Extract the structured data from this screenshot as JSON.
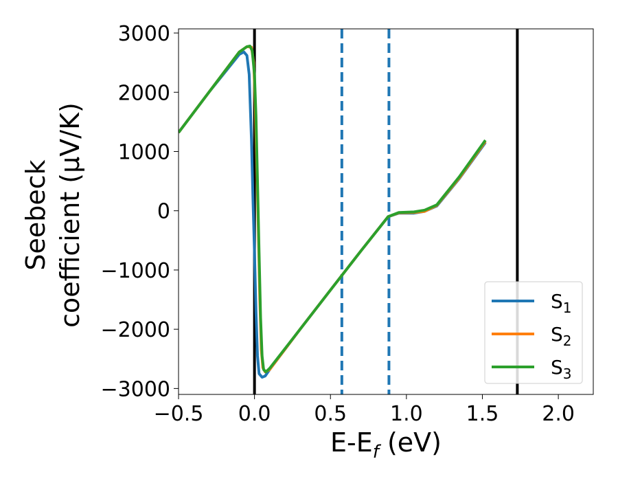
{
  "chart_data": {
    "type": "line",
    "xlabel_main": "E-E",
    "xlabel_sub": "f",
    "xlabel_unit": " (eV)",
    "ylabel_line1": "Seebeck",
    "ylabel_line2": "coefficient  (μV/K)",
    "xlim": [
      -0.5,
      2.23
    ],
    "ylim": [
      -3100,
      3070
    ],
    "x_ticks": [
      {
        "value": -0.5,
        "label": "−0.5"
      },
      {
        "value": 0.0,
        "label": "0.0"
      },
      {
        "value": 0.5,
        "label": "0.5"
      },
      {
        "value": 1.0,
        "label": "1.0"
      },
      {
        "value": 1.5,
        "label": "1.5"
      },
      {
        "value": 2.0,
        "label": "2.0"
      }
    ],
    "y_ticks": [
      {
        "value": 3000,
        "label": "3000"
      },
      {
        "value": 2000,
        "label": "2000"
      },
      {
        "value": 1000,
        "label": "1000"
      },
      {
        "value": 0,
        "label": "0"
      },
      {
        "value": -1000,
        "label": "−1000"
      },
      {
        "value": -2000,
        "label": "−2000"
      },
      {
        "value": -3000,
        "label": "−3000"
      }
    ],
    "vertical_lines": [
      {
        "x": 0.0,
        "style": "solid",
        "color": "#000000"
      },
      {
        "x": 1.73,
        "style": "solid",
        "color": "#000000"
      },
      {
        "x": 0.575,
        "style": "dashed",
        "color": "#1f77b4"
      },
      {
        "x": 0.885,
        "style": "dashed",
        "color": "#1f77b4"
      }
    ],
    "legend_position": "bottom-right",
    "series": [
      {
        "name": "S",
        "sub": "1",
        "color": "#1f77b4",
        "points": [
          [
            -0.5,
            1320
          ],
          [
            -0.3,
            2000
          ],
          [
            -0.1,
            2640
          ],
          [
            -0.07,
            2680
          ],
          [
            -0.05,
            2620
          ],
          [
            -0.035,
            2300
          ],
          [
            -0.02,
            1200
          ],
          [
            -0.01,
            200
          ],
          [
            0.0,
            -700
          ],
          [
            0.01,
            -1700
          ],
          [
            0.02,
            -2450
          ],
          [
            0.03,
            -2750
          ],
          [
            0.05,
            -2810
          ],
          [
            0.07,
            -2790
          ],
          [
            0.1,
            -2680
          ],
          [
            0.3,
            -2000
          ],
          [
            0.5,
            -1340
          ],
          [
            0.7,
            -680
          ],
          [
            0.88,
            -100
          ],
          [
            0.95,
            -40
          ],
          [
            1.05,
            -40
          ],
          [
            1.12,
            -10
          ],
          [
            1.2,
            80
          ],
          [
            1.35,
            550
          ],
          [
            1.52,
            1150
          ]
        ]
      },
      {
        "name": "S",
        "sub": "2",
        "color": "#ff7f0e",
        "points": [
          [
            -0.5,
            1320
          ],
          [
            -0.3,
            2000
          ],
          [
            -0.1,
            2680
          ],
          [
            -0.05,
            2770
          ],
          [
            -0.02,
            2760
          ],
          [
            -0.005,
            2500
          ],
          [
            0.005,
            1800
          ],
          [
            0.015,
            800
          ],
          [
            0.025,
            -300
          ],
          [
            0.035,
            -1500
          ],
          [
            0.045,
            -2350
          ],
          [
            0.055,
            -2650
          ],
          [
            0.07,
            -2720
          ],
          [
            0.1,
            -2680
          ],
          [
            0.3,
            -2000
          ],
          [
            0.5,
            -1340
          ],
          [
            0.7,
            -680
          ],
          [
            0.88,
            -100
          ],
          [
            0.95,
            -35
          ],
          [
            1.05,
            -30
          ],
          [
            1.12,
            -10
          ],
          [
            1.2,
            90
          ],
          [
            1.35,
            560
          ],
          [
            1.52,
            1170
          ]
        ]
      },
      {
        "name": "S",
        "sub": "3",
        "color": "#2ca02c",
        "points": [
          [
            -0.5,
            1320
          ],
          [
            -0.3,
            2000
          ],
          [
            -0.1,
            2680
          ],
          [
            -0.05,
            2770
          ],
          [
            -0.03,
            2780
          ],
          [
            -0.015,
            2700
          ],
          [
            0.0,
            2300
          ],
          [
            0.01,
            1600
          ],
          [
            0.02,
            500
          ],
          [
            0.03,
            -700
          ],
          [
            0.04,
            -1800
          ],
          [
            0.05,
            -2450
          ],
          [
            0.06,
            -2680
          ],
          [
            0.075,
            -2720
          ],
          [
            0.1,
            -2660
          ],
          [
            0.3,
            -2000
          ],
          [
            0.5,
            -1340
          ],
          [
            0.7,
            -680
          ],
          [
            0.88,
            -100
          ],
          [
            0.95,
            -30
          ],
          [
            1.05,
            -20
          ],
          [
            1.12,
            10
          ],
          [
            1.2,
            100
          ],
          [
            1.35,
            580
          ],
          [
            1.52,
            1190
          ]
        ]
      }
    ]
  }
}
